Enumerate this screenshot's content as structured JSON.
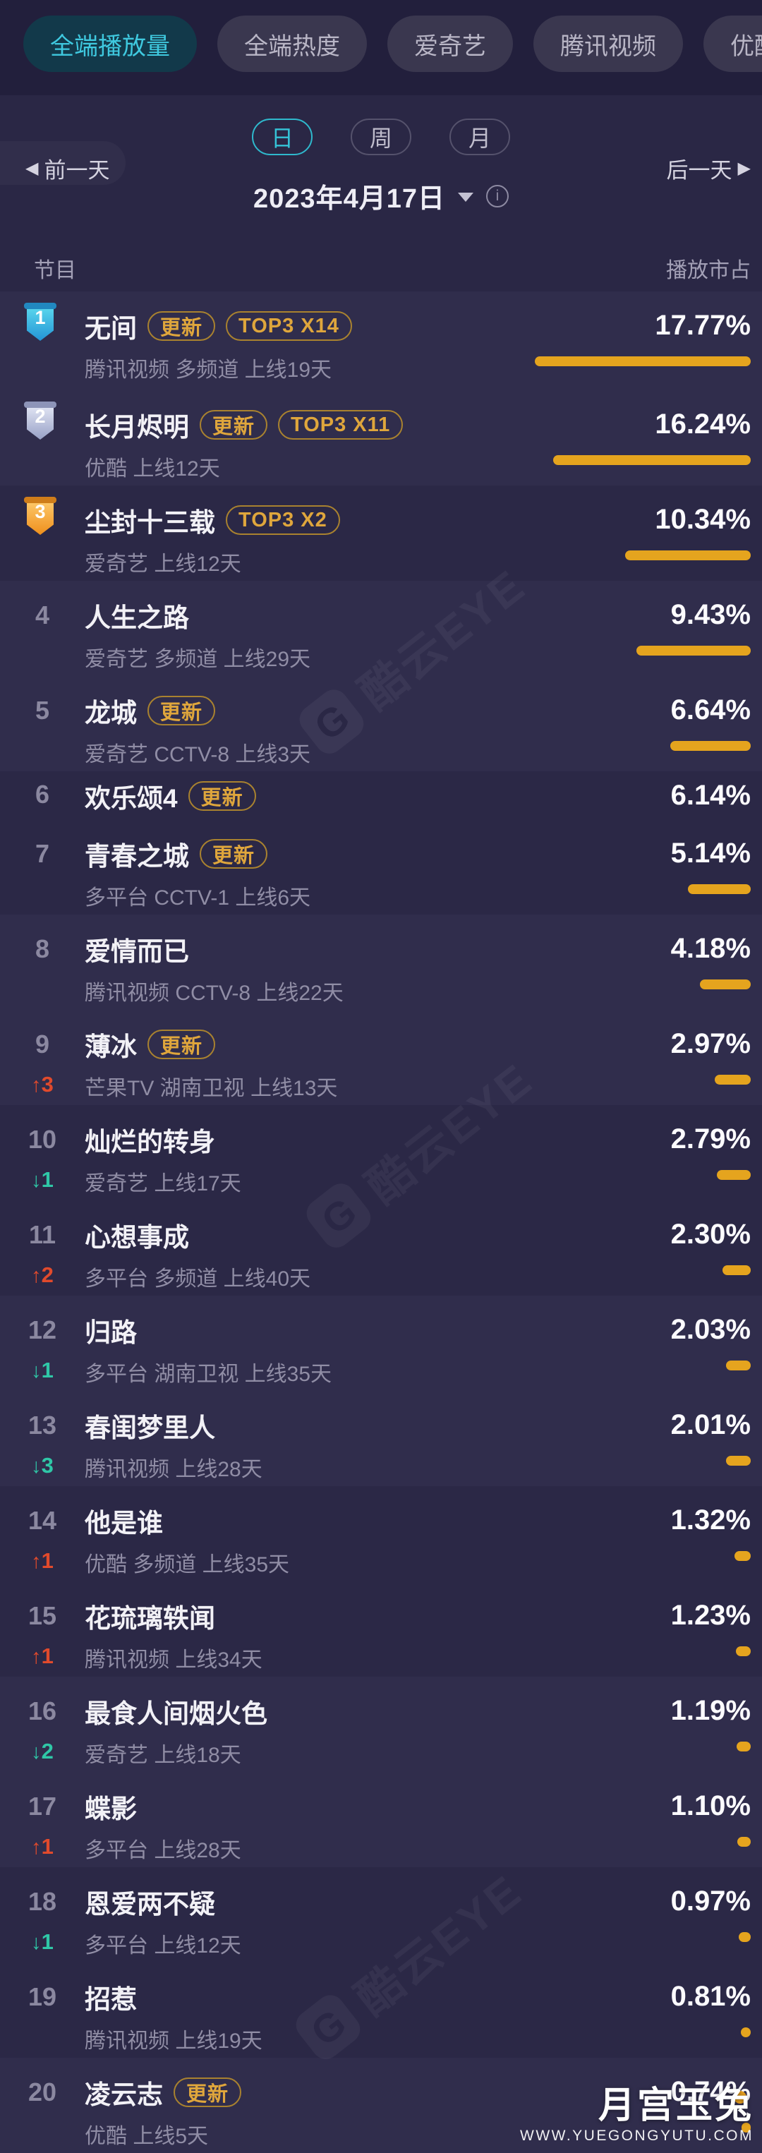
{
  "tabs": [
    {
      "label": "全端播放量",
      "active": true
    },
    {
      "label": "全端热度",
      "active": false
    },
    {
      "label": "爱奇艺",
      "active": false
    },
    {
      "label": "腾讯视频",
      "active": false
    },
    {
      "label": "优酷",
      "active": false
    }
  ],
  "period_options": [
    {
      "label": "日",
      "active": true
    },
    {
      "label": "周",
      "active": false
    },
    {
      "label": "月",
      "active": false
    }
  ],
  "date_nav": {
    "prev": "前一天",
    "next": "后一天",
    "prev_arrow": "◀",
    "next_arrow": "▶",
    "date": "2023年4月17日",
    "info_icon": "i"
  },
  "table": {
    "col_program": "节目",
    "col_share": "播放市占"
  },
  "colors": {
    "accent_gold": "#E5A41E",
    "tag_gold": "#DFA63C",
    "up_red": "#E14A2C",
    "down_teal": "#2FC7A7",
    "active_cyan": "#3FC9DF"
  },
  "rows": [
    {
      "rank": 1,
      "medal": "blue",
      "title": "无间",
      "tags": [
        "更新",
        "TOP3 X14"
      ],
      "subtitle": "腾讯视频 多频道 上线19天",
      "share": "17.77%",
      "share_value": 17.77,
      "change": null
    },
    {
      "rank": 2,
      "medal": "silver",
      "title": "长月烬明",
      "tags": [
        "更新",
        "TOP3 X11"
      ],
      "subtitle": "优酷 上线12天",
      "share": "16.24%",
      "share_value": 16.24,
      "change": null
    },
    {
      "rank": 3,
      "medal": "orange",
      "title": "尘封十三载",
      "tags": [
        "TOP3 X2"
      ],
      "subtitle": "爱奇艺 上线12天",
      "share": "10.34%",
      "share_value": 10.34,
      "change": null
    },
    {
      "rank": 4,
      "medal": null,
      "title": "人生之路",
      "tags": [],
      "subtitle": "爱奇艺 多频道 上线29天",
      "share": "9.43%",
      "share_value": 9.43,
      "change": null
    },
    {
      "rank": 5,
      "medal": null,
      "title": "龙城",
      "tags": [
        "更新"
      ],
      "subtitle": "爱奇艺 CCTV-8 上线3天",
      "share": "6.64%",
      "share_value": 6.64,
      "change": null
    },
    {
      "rank": 6,
      "medal": null,
      "title": "欢乐颂4",
      "tags": [
        "更新"
      ],
      "subtitle": null,
      "share": "6.14%",
      "share_value": 6.14,
      "change": null
    },
    {
      "rank": 7,
      "medal": null,
      "title": "青春之城",
      "tags": [
        "更新"
      ],
      "subtitle": "多平台 CCTV-1 上线6天",
      "share": "5.14%",
      "share_value": 5.14,
      "change": null
    },
    {
      "rank": 8,
      "medal": null,
      "title": "爱情而已",
      "tags": [],
      "subtitle": "腾讯视频 CCTV-8 上线22天",
      "share": "4.18%",
      "share_value": 4.18,
      "change": null
    },
    {
      "rank": 9,
      "medal": null,
      "title": "薄冰",
      "tags": [
        "更新"
      ],
      "subtitle": "芒果TV 湖南卫视 上线13天",
      "share": "2.97%",
      "share_value": 2.97,
      "change": {
        "dir": "up",
        "value": 3
      }
    },
    {
      "rank": 10,
      "medal": null,
      "title": "灿烂的转身",
      "tags": [],
      "subtitle": "爱奇艺 上线17天",
      "share": "2.79%",
      "share_value": 2.79,
      "change": {
        "dir": "down",
        "value": 1
      }
    },
    {
      "rank": 11,
      "medal": null,
      "title": "心想事成",
      "tags": [],
      "subtitle": "多平台 多频道 上线40天",
      "share": "2.30%",
      "share_value": 2.3,
      "change": {
        "dir": "up",
        "value": 2
      }
    },
    {
      "rank": 12,
      "medal": null,
      "title": "归路",
      "tags": [],
      "subtitle": "多平台 湖南卫视 上线35天",
      "share": "2.03%",
      "share_value": 2.03,
      "change": {
        "dir": "down",
        "value": 1
      }
    },
    {
      "rank": 13,
      "medal": null,
      "title": "春闺梦里人",
      "tags": [],
      "subtitle": "腾讯视频 上线28天",
      "share": "2.01%",
      "share_value": 2.01,
      "change": {
        "dir": "down",
        "value": 3
      }
    },
    {
      "rank": 14,
      "medal": null,
      "title": "他是谁",
      "tags": [],
      "subtitle": "优酷 多频道 上线35天",
      "share": "1.32%",
      "share_value": 1.32,
      "change": {
        "dir": "up",
        "value": 1
      }
    },
    {
      "rank": 15,
      "medal": null,
      "title": "花琉璃轶闻",
      "tags": [],
      "subtitle": "腾讯视频 上线34天",
      "share": "1.23%",
      "share_value": 1.23,
      "change": {
        "dir": "up",
        "value": 1
      }
    },
    {
      "rank": 16,
      "medal": null,
      "title": "最食人间烟火色",
      "tags": [],
      "subtitle": "爱奇艺 上线18天",
      "share": "1.19%",
      "share_value": 1.19,
      "change": {
        "dir": "down",
        "value": 2
      }
    },
    {
      "rank": 17,
      "medal": null,
      "title": "蝶影",
      "tags": [],
      "subtitle": "多平台 上线28天",
      "share": "1.10%",
      "share_value": 1.1,
      "change": {
        "dir": "up",
        "value": 1
      }
    },
    {
      "rank": 18,
      "medal": null,
      "title": "恩爱两不疑",
      "tags": [],
      "subtitle": "多平台 上线12天",
      "share": "0.97%",
      "share_value": 0.97,
      "change": {
        "dir": "down",
        "value": 1
      }
    },
    {
      "rank": 19,
      "medal": null,
      "title": "招惹",
      "tags": [],
      "subtitle": "腾讯视频 上线19天",
      "share": "0.81%",
      "share_value": 0.81,
      "change": null
    },
    {
      "rank": 20,
      "medal": null,
      "title": "凌云志",
      "tags": [
        "更新"
      ],
      "subtitle": "优酷 上线5天",
      "share": "0.74%",
      "share_value": 0.74,
      "change": null
    }
  ],
  "watermark": {
    "diag_text": "酷云EYE",
    "diag_logo": "G",
    "site_name": "月宫玉兔",
    "site_url": "WWW.YUEGONGYUTU.COM"
  },
  "chart_data": {
    "type": "bar",
    "title": "全端播放量 播放市占 2023年4月17日",
    "categories": [
      "无间",
      "长月烬明",
      "尘封十三载",
      "人生之路",
      "龙城",
      "欢乐颂4",
      "青春之城",
      "爱情而已",
      "薄冰",
      "灿烂的转身",
      "心想事成",
      "归路",
      "春闺梦里人",
      "他是谁",
      "花琉璃轶闻",
      "最食人间烟火色",
      "蝶影",
      "恩爱两不疑",
      "招惹",
      "凌云志"
    ],
    "values": [
      17.77,
      16.24,
      10.34,
      9.43,
      6.64,
      6.14,
      5.14,
      4.18,
      2.97,
      2.79,
      2.3,
      2.03,
      2.01,
      1.32,
      1.23,
      1.19,
      1.1,
      0.97,
      0.81,
      0.74
    ],
    "xlabel": "节目",
    "ylabel": "播放市占 (%)",
    "ylim": [
      0,
      18
    ]
  }
}
